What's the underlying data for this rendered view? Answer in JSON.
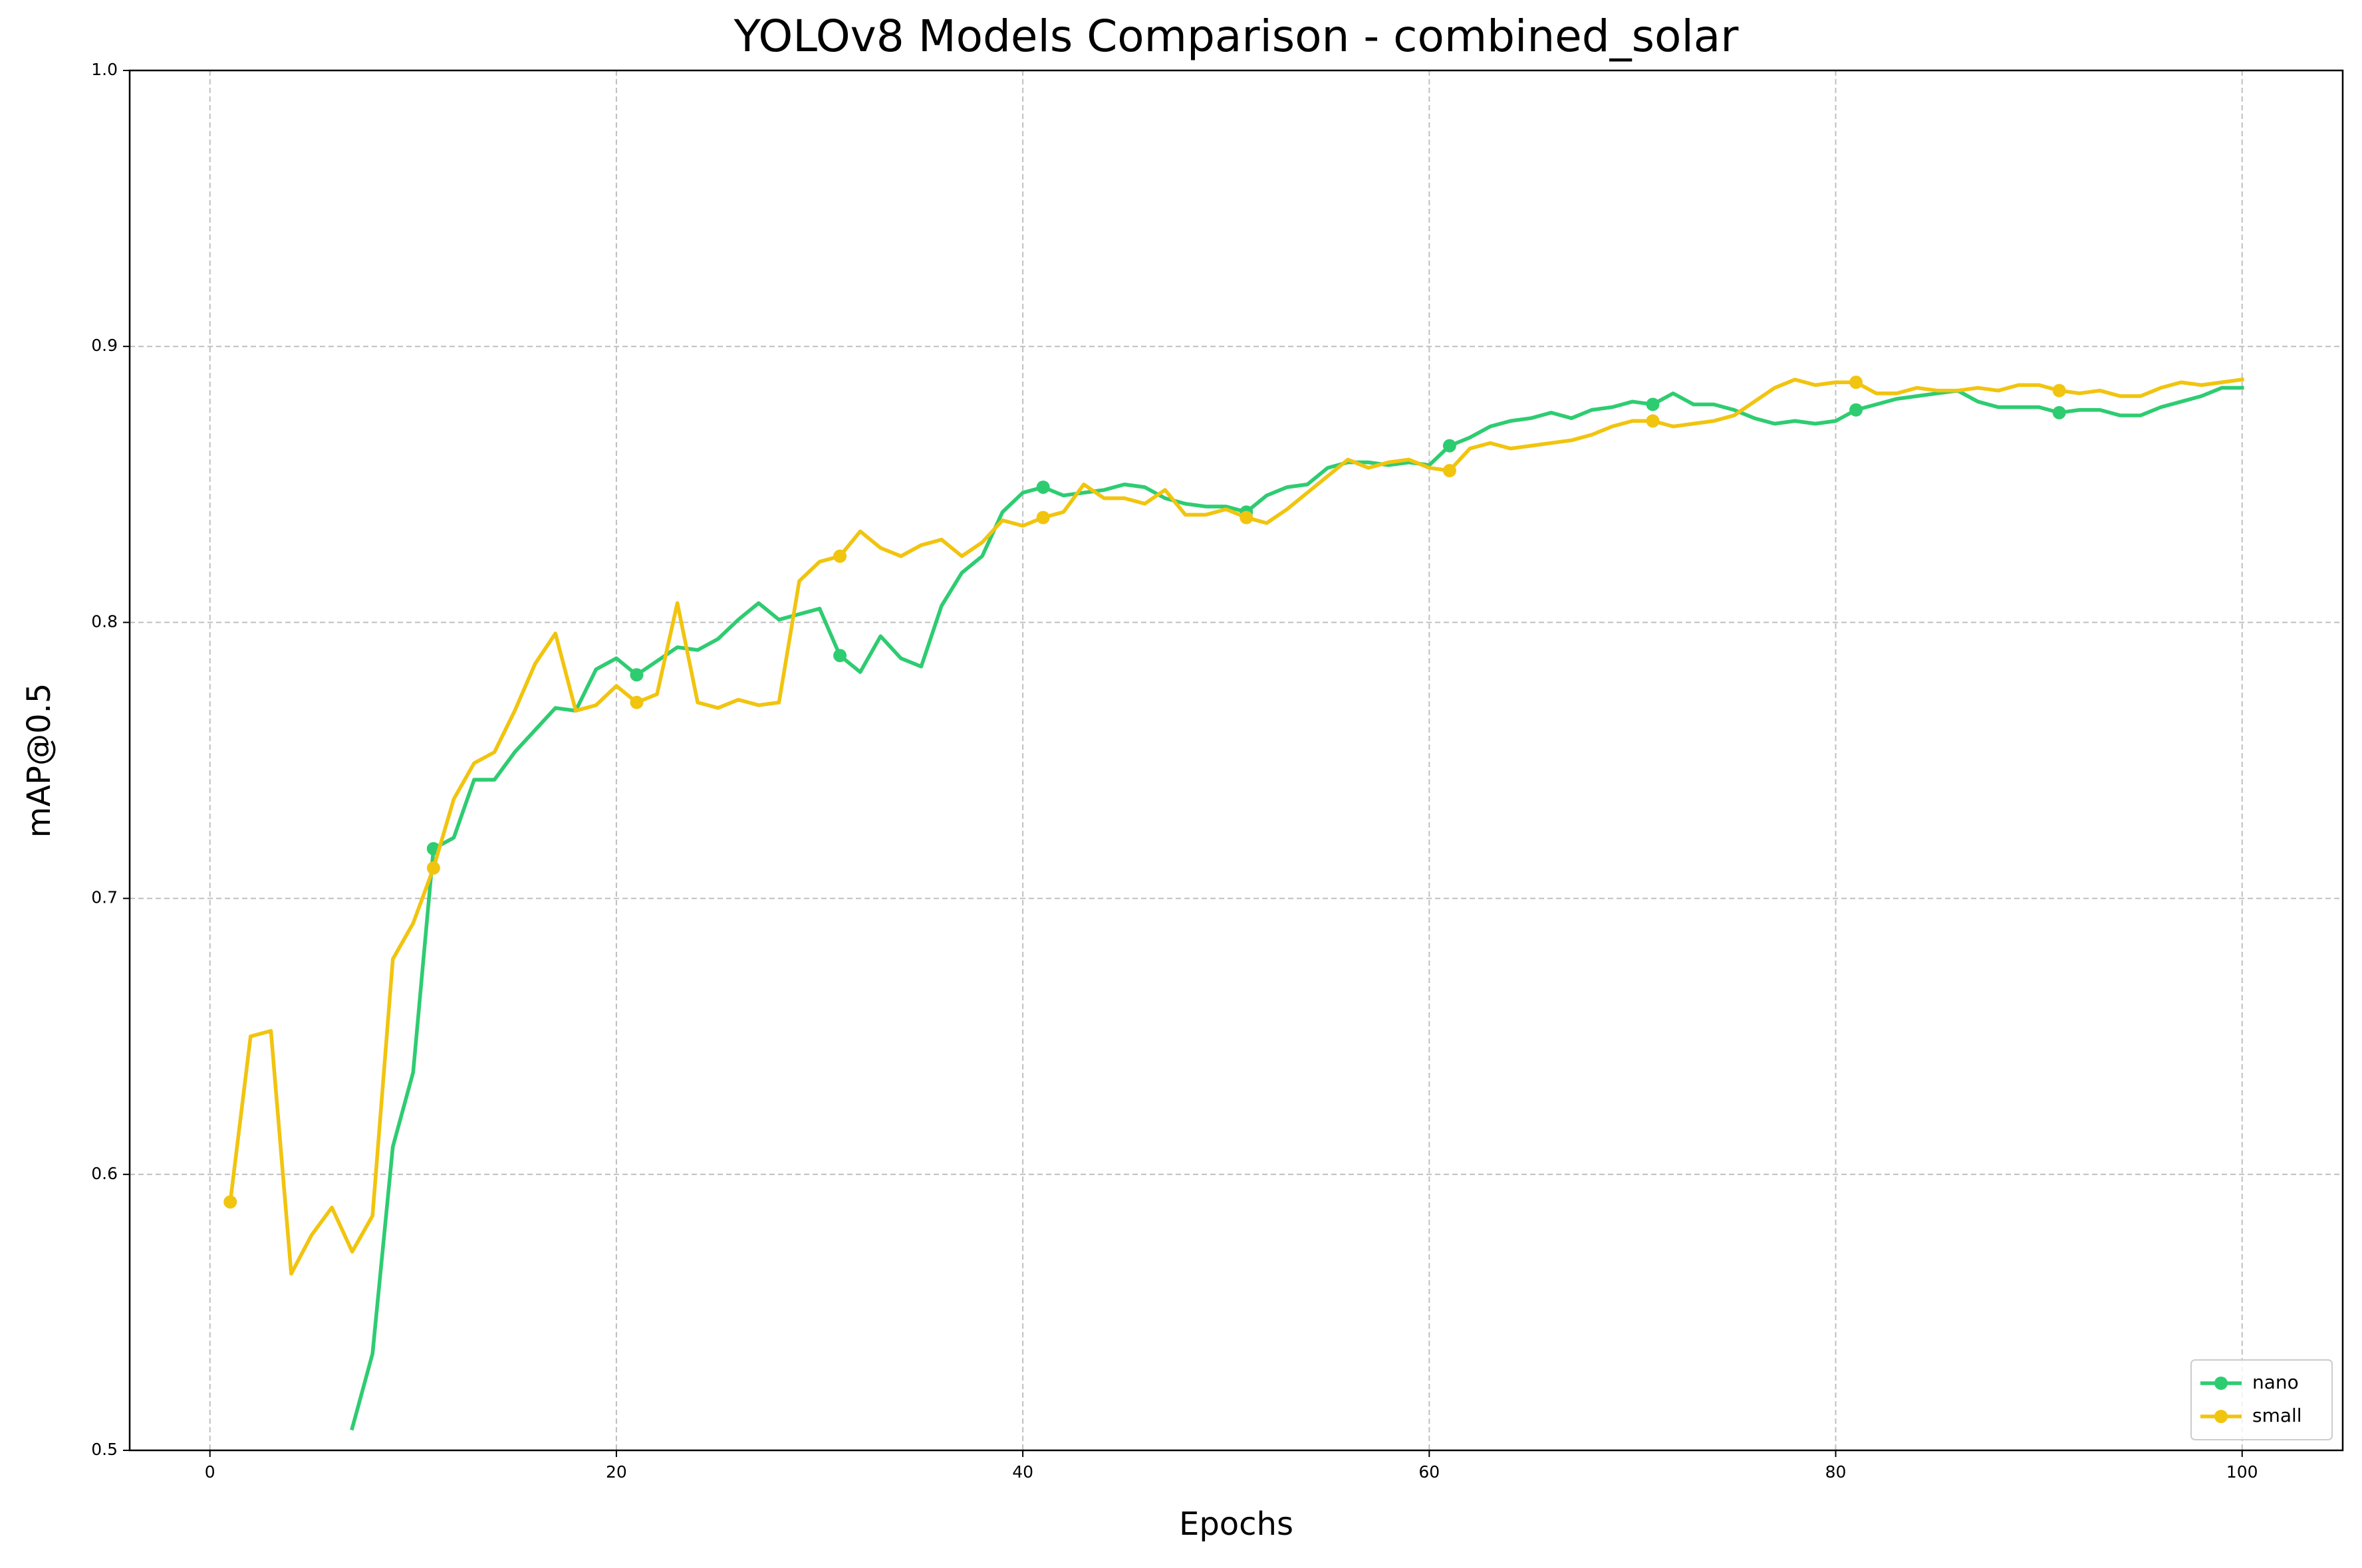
{
  "chart_data": {
    "type": "line",
    "title": "YOLOv8 Models Comparison - combined_solar",
    "x_label": "Epochs",
    "y_label": "mAP@0.5",
    "x": [
      1,
      2,
      3,
      4,
      5,
      6,
      7,
      8,
      9,
      10,
      11,
      12,
      13,
      14,
      15,
      16,
      17,
      18,
      19,
      20,
      21,
      22,
      23,
      24,
      25,
      26,
      27,
      28,
      29,
      30,
      31,
      32,
      33,
      34,
      35,
      36,
      37,
      38,
      39,
      40,
      41,
      42,
      43,
      44,
      45,
      46,
      47,
      48,
      49,
      50,
      51,
      52,
      53,
      54,
      55,
      56,
      57,
      58,
      59,
      60,
      61,
      62,
      63,
      64,
      65,
      66,
      67,
      68,
      69,
      70,
      71,
      72,
      73,
      74,
      75,
      76,
      77,
      78,
      79,
      80,
      81,
      82,
      83,
      84,
      85,
      86,
      87,
      88,
      89,
      90,
      91,
      92,
      93,
      94,
      95,
      96,
      97,
      98,
      99,
      100
    ],
    "series": [
      {
        "name": "nano",
        "color": "#2ecc71",
        "values": [
          null,
          null,
          null,
          null,
          null,
          null,
          0.508,
          0.535,
          0.61,
          0.637,
          0.718,
          0.722,
          0.743,
          0.743,
          0.753,
          0.761,
          0.769,
          0.768,
          0.783,
          0.787,
          0.781,
          0.786,
          0.791,
          0.79,
          0.794,
          0.801,
          0.807,
          0.801,
          0.803,
          0.805,
          0.788,
          0.782,
          0.795,
          0.787,
          0.784,
          0.806,
          0.818,
          0.824,
          0.84,
          0.847,
          0.849,
          0.846,
          0.847,
          0.848,
          0.85,
          0.849,
          0.845,
          0.843,
          0.842,
          0.842,
          0.84,
          0.846,
          0.849,
          0.85,
          0.856,
          0.858,
          0.858,
          0.857,
          0.858,
          0.857,
          0.864,
          0.867,
          0.871,
          0.873,
          0.874,
          0.876,
          0.874,
          0.877,
          0.878,
          0.88,
          0.879,
          0.883,
          0.879,
          0.879,
          0.877,
          0.874,
          0.872,
          0.873,
          0.872,
          0.873,
          0.877,
          0.879,
          0.881,
          0.882,
          0.883,
          0.884,
          0.88,
          0.878,
          0.878,
          0.878,
          0.876,
          0.877,
          0.877,
          0.875,
          0.875,
          0.878,
          0.88,
          0.882,
          0.885,
          0.885
        ]
      },
      {
        "name": "small",
        "color": "#f1c40f",
        "values": [
          0.59,
          0.65,
          0.652,
          0.564,
          0.578,
          0.588,
          0.572,
          0.585,
          0.678,
          0.691,
          0.711,
          0.736,
          0.749,
          0.753,
          0.768,
          0.785,
          0.796,
          0.768,
          0.77,
          0.777,
          0.771,
          0.774,
          0.807,
          0.771,
          0.769,
          0.772,
          0.77,
          0.771,
          0.815,
          0.822,
          0.824,
          0.833,
          0.827,
          0.824,
          0.828,
          0.83,
          0.824,
          0.829,
          0.837,
          0.835,
          0.838,
          0.84,
          0.85,
          0.845,
          0.845,
          0.843,
          0.848,
          0.839,
          0.839,
          0.841,
          0.838,
          0.836,
          0.841,
          0.847,
          0.853,
          0.859,
          0.856,
          0.858,
          0.859,
          0.856,
          0.855,
          0.863,
          0.865,
          0.863,
          0.864,
          0.865,
          0.866,
          0.868,
          0.871,
          0.873,
          0.873,
          0.871,
          0.872,
          0.873,
          0.875,
          0.88,
          0.885,
          0.888,
          0.886,
          0.887,
          0.887,
          0.883,
          0.883,
          0.885,
          0.884,
          0.884,
          0.885,
          0.884,
          0.886,
          0.886,
          0.884,
          0.883,
          0.884,
          0.882,
          0.882,
          0.885,
          0.887,
          0.886,
          0.887,
          0.888
        ]
      }
    ],
    "xlim": [
      -3.95,
      104.95
    ],
    "ylim": [
      0.5,
      1.0
    ],
    "xticks": [
      0,
      20,
      40,
      60,
      80,
      100
    ],
    "yticks": [
      0.5,
      0.6,
      0.7,
      0.8,
      0.9,
      {
        "value": 1.0,
        "label": "1.0"
      }
    ],
    "grid": true,
    "legend": "lower right"
  }
}
